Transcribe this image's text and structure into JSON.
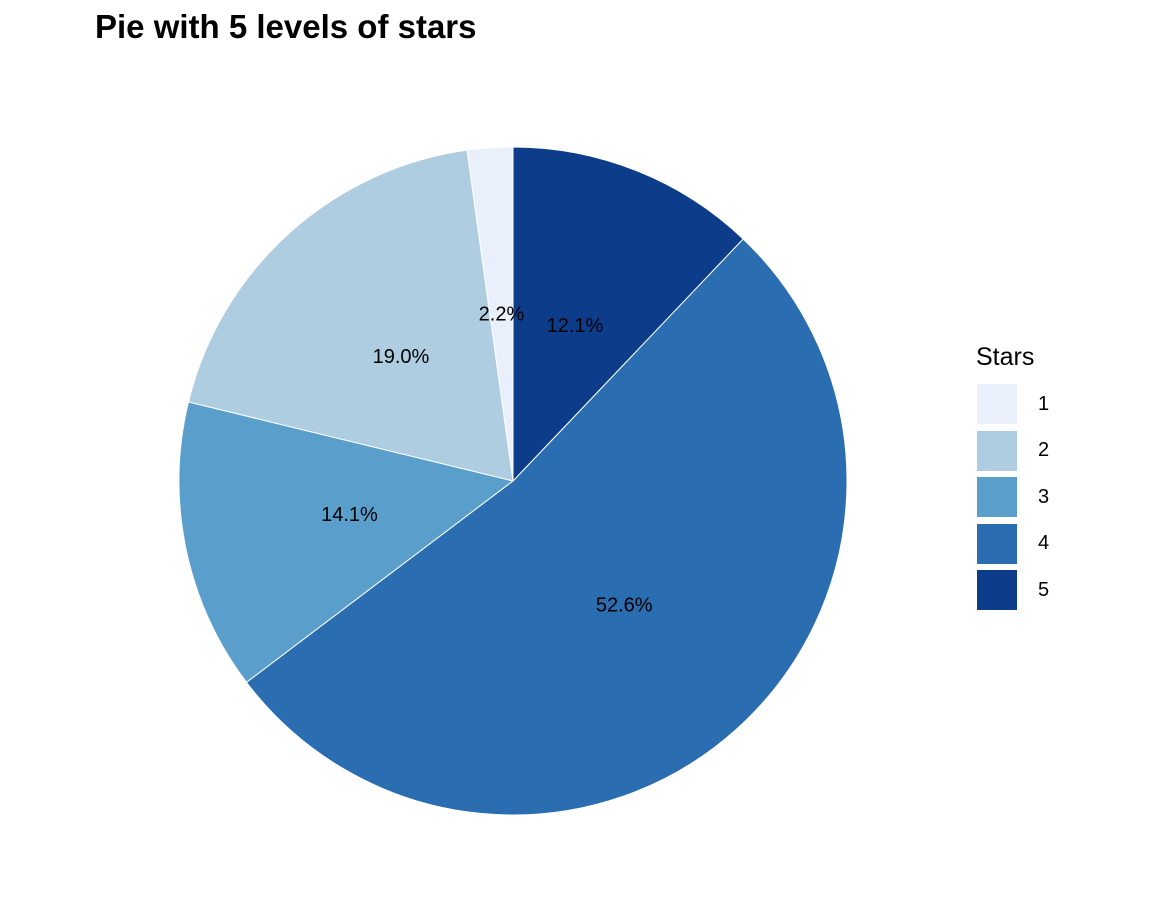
{
  "chart_data": {
    "type": "pie",
    "title": "Pie with 5 levels of stars",
    "legend": {
      "title": "Stars",
      "placement": "right"
    },
    "slices": [
      {
        "category": "1",
        "value": 2.2,
        "label": "2.2%",
        "color": "#eaf0fb"
      },
      {
        "category": "2",
        "value": 19.0,
        "label": "19.0%",
        "color": "#afcde1"
      },
      {
        "category": "3",
        "value": 14.1,
        "label": "14.1%",
        "color": "#5a9fcc"
      },
      {
        "category": "4",
        "value": 52.6,
        "label": "52.6%",
        "color": "#2a6db0"
      },
      {
        "category": "5",
        "value": 12.1,
        "label": "12.1%",
        "color": "#0d3d8a"
      }
    ]
  }
}
